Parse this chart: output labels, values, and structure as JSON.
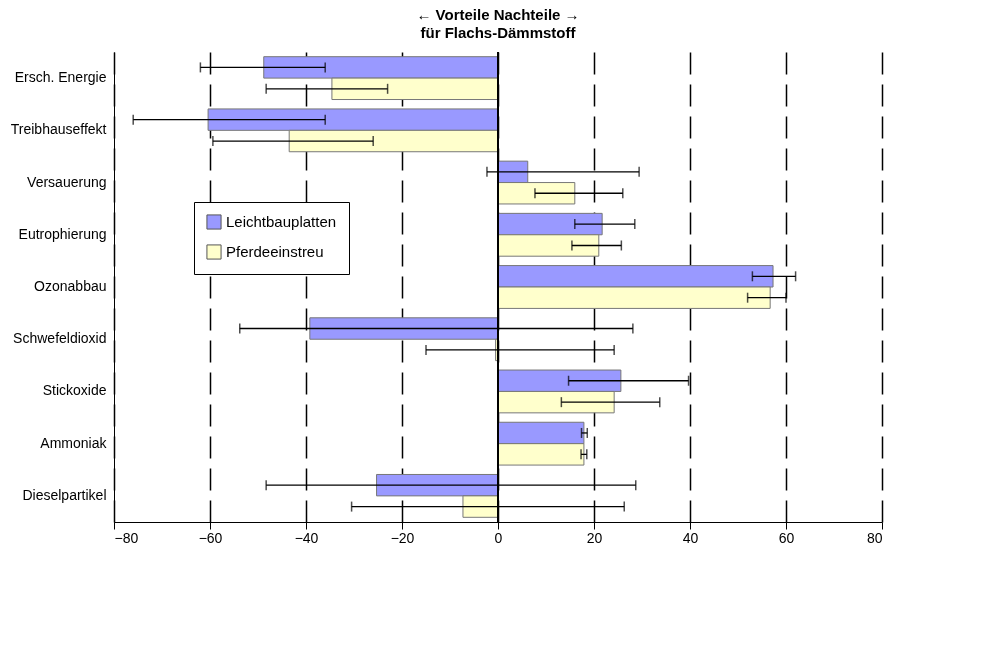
{
  "chart_data": {
    "type": "bar",
    "orientation": "horizontal",
    "title": "←   Vorteile      Nachteile   →",
    "subtitle": "für Flachs-Dämmstoff",
    "categories": [
      "Ersch. Energie",
      "Treibhauseffekt",
      "Versauerung",
      "Eutrophierung",
      "Ozonabbau",
      "Schwefeldioxid",
      "Stickoxide",
      "Ammoniak",
      "Dieselpartikel"
    ],
    "series": [
      {
        "name": "Leichtbauplatten",
        "color": "#9999ff",
        "values": [
          -48.8,
          -60.4,
          6.2,
          21.7,
          57.3,
          -39.2,
          25.6,
          17.9,
          -25.3
        ],
        "errors": [
          [
            -62,
            -36
          ],
          [
            -76,
            -36
          ],
          [
            -2.3,
            29.4
          ],
          [
            16,
            28.5
          ],
          [
            53,
            62
          ],
          [
            -53.8,
            28.1
          ],
          [
            14.7,
            39.7
          ],
          [
            17.4,
            18.6
          ],
          [
            -48.3,
            28.7
          ]
        ]
      },
      {
        "name": "Pferdeeinstreu",
        "color": "#ffffcc",
        "values": [
          -34.6,
          -43.5,
          16,
          21,
          56.7,
          -0.5,
          24.2,
          17.9,
          -7.3
        ],
        "errors": [
          [
            -48.3,
            -23
          ],
          [
            -59.4,
            -26
          ],
          [
            7.7,
            26
          ],
          [
            15.4,
            25.7
          ],
          [
            52,
            60
          ],
          [
            -15,
            24.2
          ],
          [
            13.2,
            33.7
          ],
          [
            17.3,
            18.5
          ],
          [
            -30.5,
            26.3
          ]
        ]
      }
    ],
    "xlim": [
      -80,
      80
    ],
    "xticks": [
      -80,
      -60,
      -40,
      -20,
      0,
      20,
      40,
      60,
      80
    ],
    "grid": "x",
    "legend": "left",
    "ref_lines": [
      {
        "axis": "x",
        "value": 0
      }
    ]
  }
}
